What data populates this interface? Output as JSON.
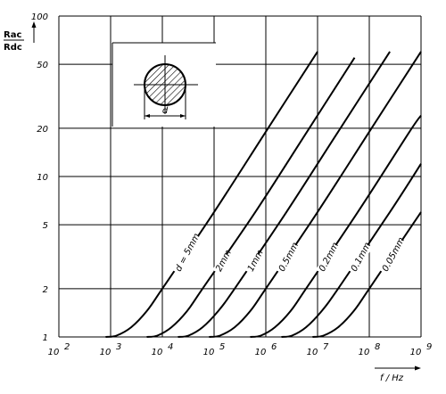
{
  "chart_data": {
    "type": "line",
    "y_axis_title": {
      "numerator": "Rac",
      "denominator": "Rdc"
    },
    "x_axis_title": "f / Hz",
    "xscale": "log",
    "yscale": "log",
    "xlim": [
      100,
      1000000000
    ],
    "ylim": [
      1,
      100
    ],
    "grid": true,
    "x_ticks": [
      {
        "base": "10",
        "exp": "2",
        "value": 100
      },
      {
        "base": "10",
        "exp": "3",
        "value": 1000
      },
      {
        "base": "10",
        "exp": "4",
        "value": 10000
      },
      {
        "base": "10",
        "exp": "5",
        "value": 100000
      },
      {
        "base": "10",
        "exp": "6",
        "value": 1000000
      },
      {
        "base": "10",
        "exp": "7",
        "value": 10000000
      },
      {
        "base": "10",
        "exp": "8",
        "value": 100000000
      },
      {
        "base": "10",
        "exp": "9",
        "value": 1000000000
      }
    ],
    "y_ticks": [
      {
        "label": "1",
        "value": 1
      },
      {
        "label": "2",
        "value": 2
      },
      {
        "label": "5",
        "value": 5
      },
      {
        "label": "10",
        "value": 10
      },
      {
        "label": "20",
        "value": 20
      },
      {
        "label": "50",
        "value": 50
      },
      {
        "label": "100",
        "value": 100
      }
    ],
    "inset": {
      "dimension_label": "d"
    },
    "series": [
      {
        "name": "d = 5mm",
        "label": "d = 5mm",
        "x": [
          800,
          1300,
          2500,
          5000,
          10000,
          100000,
          1000000,
          10000000
        ],
        "y": [
          1,
          1.02,
          1.15,
          1.45,
          2,
          6,
          19,
          60
        ]
      },
      {
        "name": "2mm",
        "label": "2mm",
        "x": [
          5000,
          8000,
          15000,
          30000,
          60000,
          625000,
          6250000,
          52000000
        ],
        "y": [
          1,
          1.02,
          1.15,
          1.45,
          2,
          6,
          19,
          55
        ]
      },
      {
        "name": "1mm",
        "label": "1mm",
        "x": [
          20000,
          32000,
          60000,
          120000,
          250000,
          2500000,
          25000000,
          250000000
        ],
        "y": [
          1,
          1.02,
          1.15,
          1.45,
          2,
          6,
          19,
          60
        ]
      },
      {
        "name": "0.5mm",
        "label": "0.5mm",
        "x": [
          80000,
          130000,
          250000,
          500000,
          1000000,
          10000000,
          100000000,
          1000000000
        ],
        "y": [
          1,
          1.02,
          1.15,
          1.45,
          2,
          6,
          19,
          60
        ]
      },
      {
        "name": "0.2mm",
        "label": "0.2mm",
        "x": [
          500000,
          800000,
          1500000,
          3000000,
          6000000,
          60000000,
          600000000,
          1000000000
        ],
        "y": [
          1,
          1.02,
          1.15,
          1.45,
          2,
          6,
          19,
          24
        ]
      },
      {
        "name": "0.1mm",
        "label": "0.1mm",
        "x": [
          2000000,
          3200000,
          6000000,
          12000000,
          25000000,
          250000000,
          1000000000
        ],
        "y": [
          1,
          1.02,
          1.15,
          1.45,
          2,
          6,
          12
        ]
      },
      {
        "name": "0.05mm",
        "label": "0.05mm",
        "x": [
          8000000,
          13000000,
          25000000,
          50000000,
          100000000,
          1000000000
        ],
        "y": [
          1,
          1.02,
          1.15,
          1.45,
          2,
          6
        ]
      }
    ]
  }
}
